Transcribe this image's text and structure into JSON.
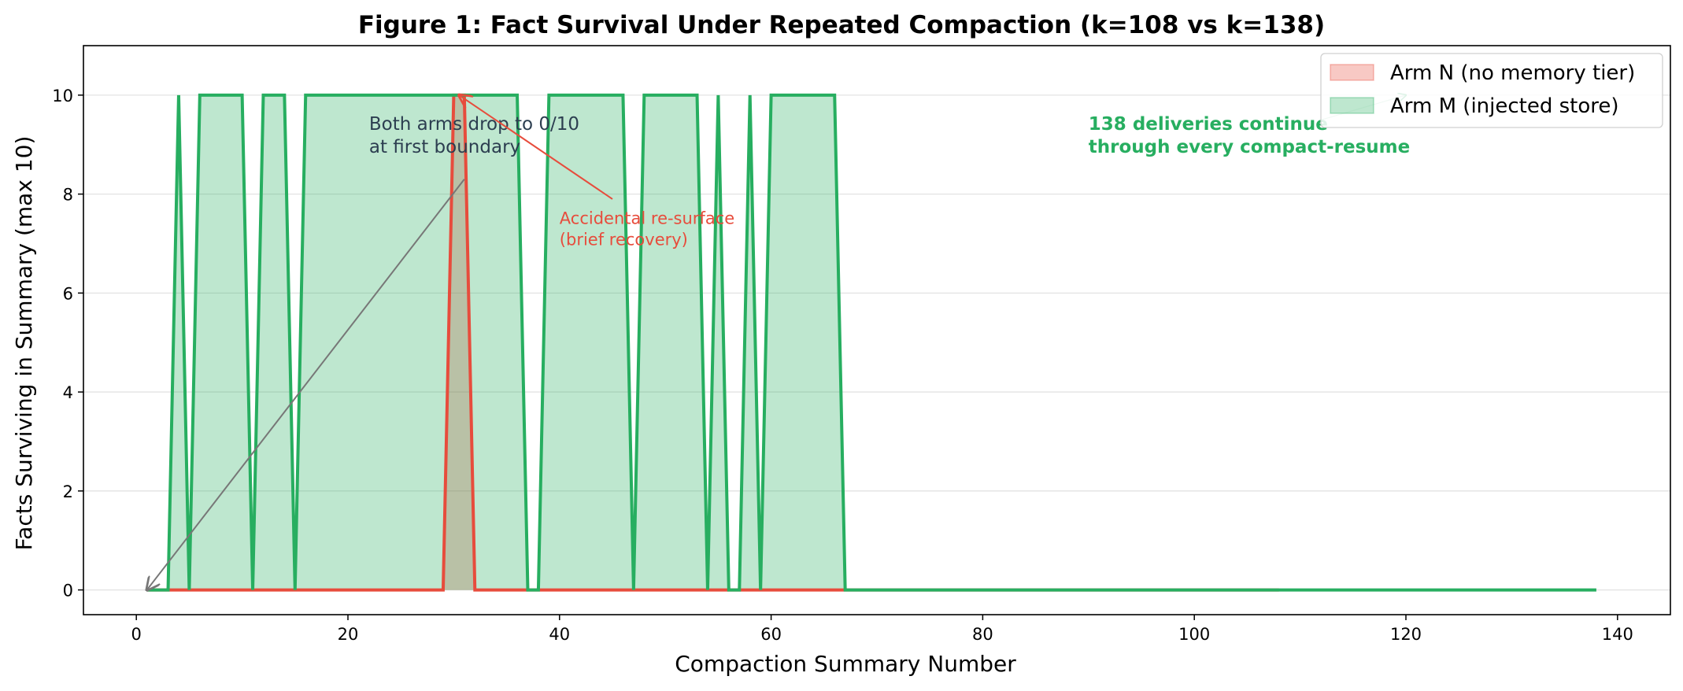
{
  "chart_data": {
    "type": "area",
    "title": "Figure 1: Fact Survival Under Repeated Compaction (k=108 vs k=138)",
    "xlabel": "Compaction Summary Number",
    "ylabel": "Facts Surviving in Summary (max 10)",
    "xlim": [
      -5,
      145
    ],
    "ylim": [
      -0.5,
      11
    ],
    "xticks": [
      0,
      20,
      40,
      60,
      80,
      100,
      120,
      140
    ],
    "yticks": [
      0,
      2,
      4,
      6,
      8,
      10
    ],
    "grid": "horizontal",
    "legend_position": "top-right",
    "series": [
      {
        "name": "Arm N (no memory tier)",
        "color": "#e74c3c",
        "fill_color": "#f5b7b1",
        "x": [
          1,
          29,
          30,
          31,
          32,
          108
        ],
        "y": [
          0,
          0,
          10,
          10,
          0,
          0
        ]
      },
      {
        "name": "Arm M (injected store)",
        "color": "#27ae60",
        "fill_color": "#bde5d0",
        "x": [
          1,
          3,
          4,
          5,
          6,
          10,
          11,
          12,
          14,
          15,
          16,
          36,
          37,
          38,
          39,
          46,
          47,
          48,
          53,
          54,
          55,
          56,
          57,
          58,
          59,
          60,
          66,
          67,
          138
        ],
        "y": [
          0,
          0,
          10,
          0,
          10,
          10,
          0,
          10,
          10,
          0,
          10,
          10,
          0,
          0,
          10,
          10,
          0,
          10,
          10,
          0,
          10,
          0,
          0,
          10,
          0,
          10,
          10,
          0,
          0
        ]
      }
    ],
    "annotations": [
      {
        "id": "both-drop",
        "lines": [
          "Both arms drop to 0/10",
          "at first boundary"
        ],
        "color": "#2c3e50",
        "text_at": [
          22,
          9.3
        ],
        "arrow_from": [
          31,
          8.3
        ],
        "arrow_to": [
          1,
          0
        ]
      },
      {
        "id": "resurface",
        "lines": [
          "Accidental re-surface",
          "(brief recovery)"
        ],
        "color": "#e74c3c",
        "text_at": [
          40,
          7.4
        ],
        "arrow_from": [
          45,
          7.9
        ],
        "arrow_to": [
          30.5,
          10
        ]
      },
      {
        "id": "continue",
        "lines": [
          "138 deliveries continue",
          "through every compact-resume"
        ],
        "color": "#27ae60",
        "text_at": [
          90,
          9.3
        ],
        "arrow_from": [
          112,
          9.5
        ],
        "arrow_to": [
          120,
          10
        ]
      }
    ]
  }
}
